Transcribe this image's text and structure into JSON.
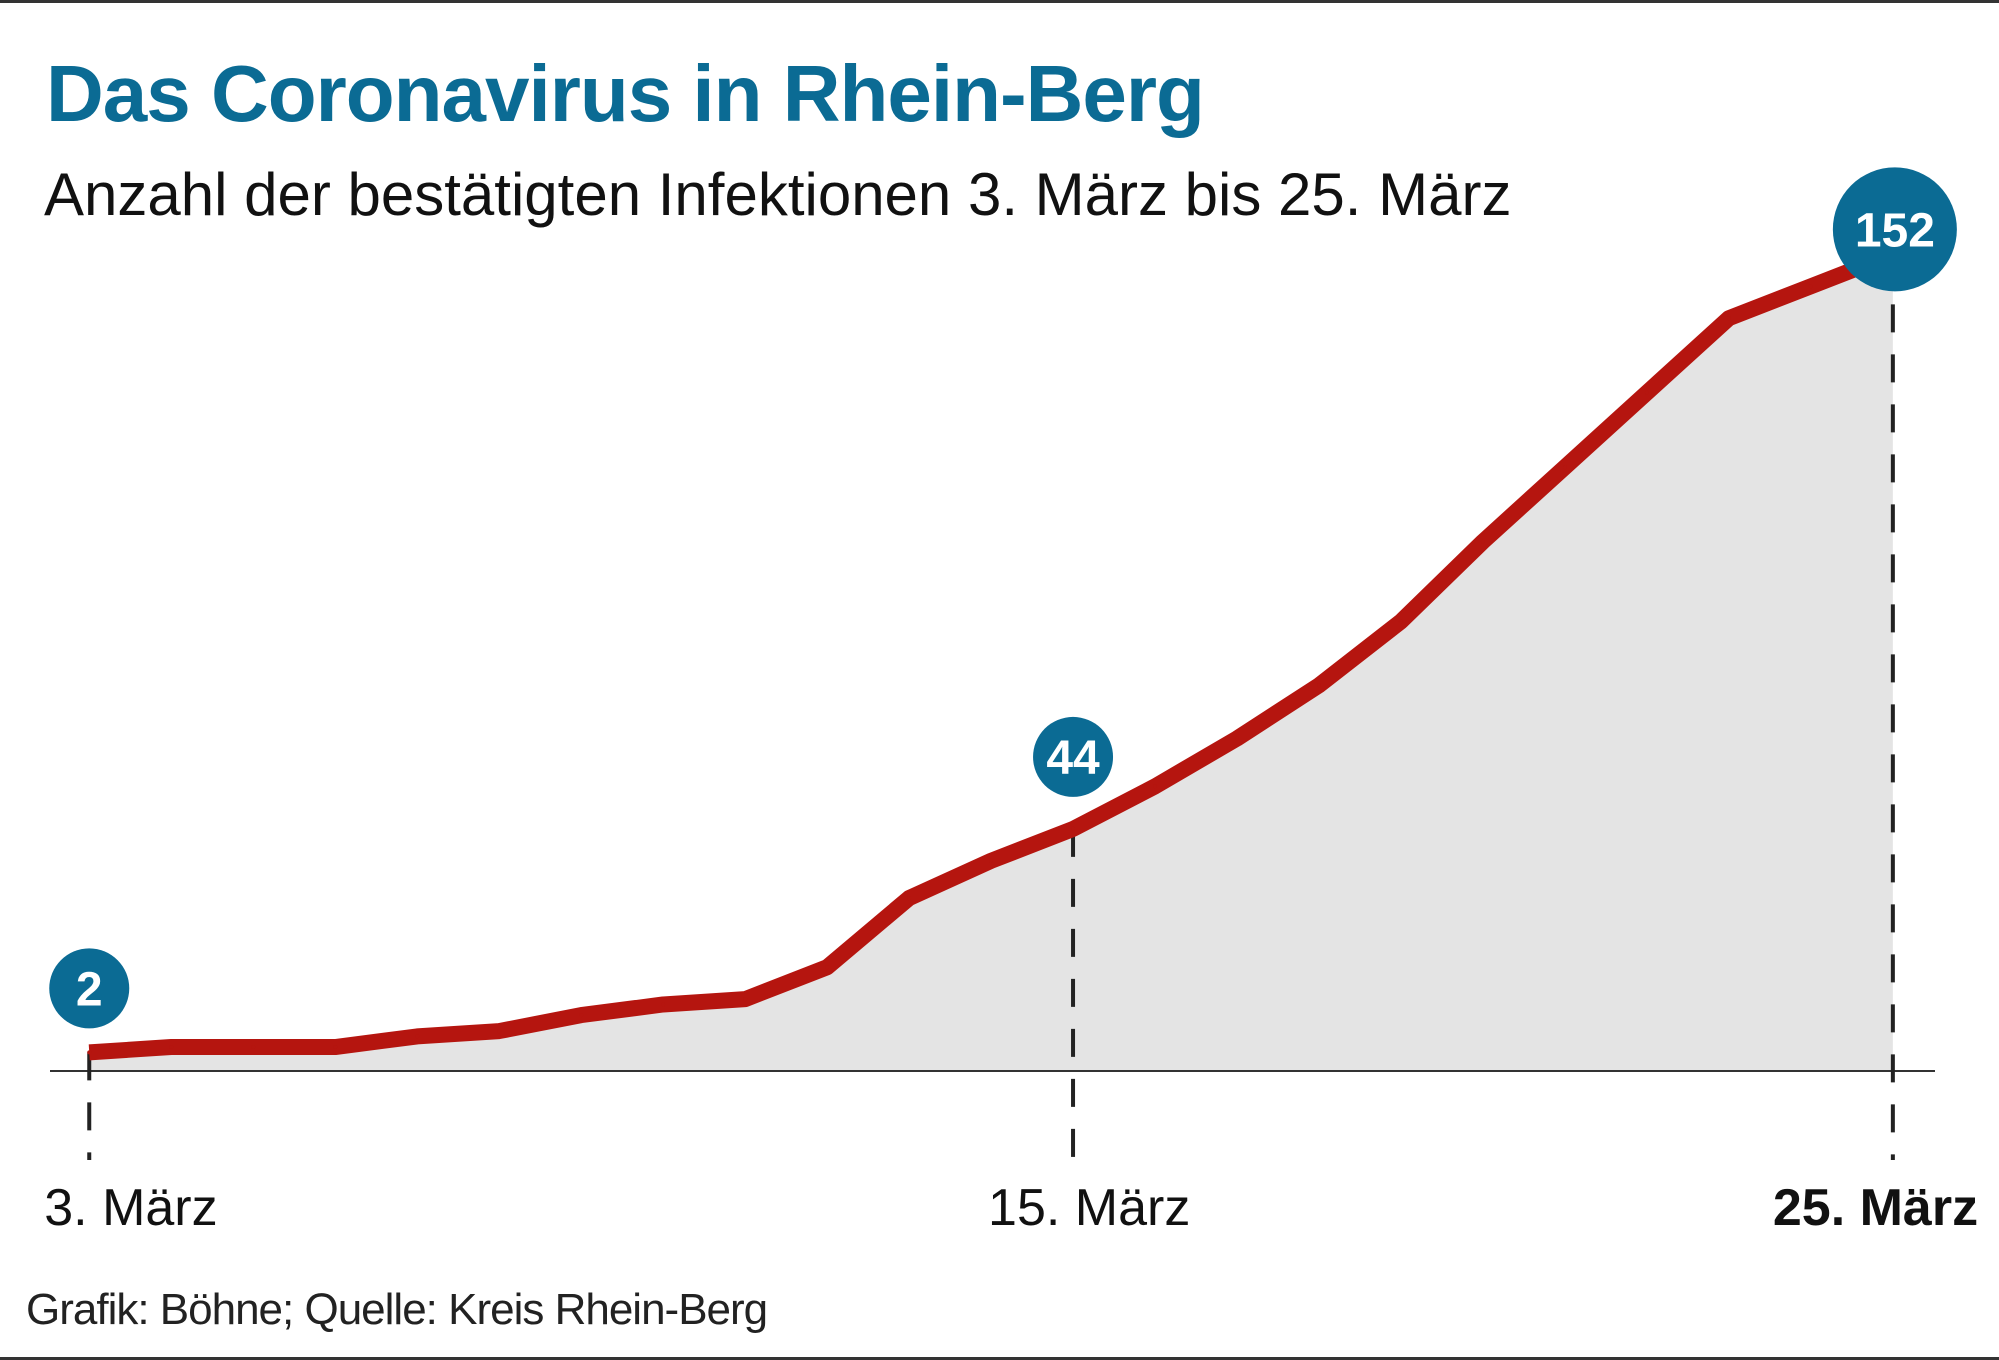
{
  "title": "Das Coronavirus in Rhein-Berg",
  "subtitle": "Anzahl der bestätigten Infektionen 3. März bis 25. März",
  "footer": "Grafik: Böhne; Quelle: Kreis Rhein-Berg",
  "colors": {
    "title": "#0b6b94",
    "line": "#b5150f",
    "area": "#e4e4e4",
    "bubble": "#0b6b94"
  },
  "chart_data": {
    "type": "area",
    "title": "Das Coronavirus in Rhein-Berg",
    "subtitle": "Anzahl der bestätigten Infektionen 3. März bis 25. März",
    "x": [
      3,
      4,
      5,
      6,
      7,
      8,
      9,
      10,
      11,
      12,
      13,
      14,
      15,
      16,
      17,
      18,
      19,
      20,
      21,
      22,
      23,
      24,
      25
    ],
    "values": [
      2,
      3,
      3,
      3,
      5,
      6,
      9,
      11,
      12,
      18,
      31,
      38,
      44,
      52,
      61,
      71,
      83,
      98,
      112,
      126,
      140,
      146,
      152
    ],
    "x_tick_labels": [
      {
        "day": 3,
        "label": "3. März"
      },
      {
        "day": 15,
        "label": "15. März"
      },
      {
        "day": 25,
        "label": "25. März"
      }
    ],
    "annotations": [
      {
        "day": 3,
        "label": "2"
      },
      {
        "day": 15,
        "label": "44"
      },
      {
        "day": 25,
        "label": "152"
      }
    ],
    "ylim": [
      0,
      160
    ],
    "grid": false
  }
}
